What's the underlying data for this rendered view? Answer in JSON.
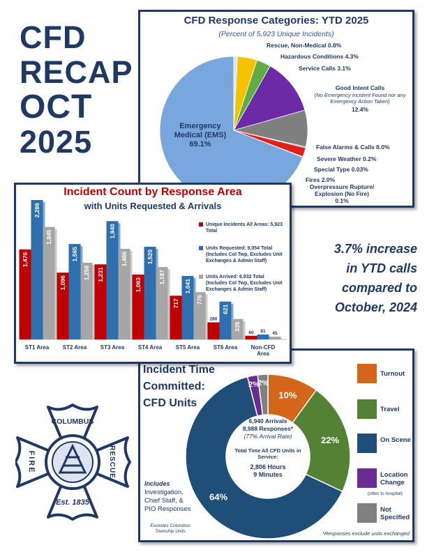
{
  "header": {
    "lines": [
      "CFD",
      "RECAP",
      "OCT",
      "2025"
    ]
  },
  "callout": {
    "lines": [
      "3.7% increase",
      "in YTD calls",
      "compared to",
      "October, 2024"
    ]
  },
  "logo": {
    "top": "COLUMBUS",
    "left": "FIRE",
    "right": "RESCUE",
    "bottom": "Est. 1835"
  },
  "chart_data": [
    {
      "type": "pie",
      "title": "CFD Response Categories: YTD 2025",
      "subtitle": "(Percent of 5,923 Unique Incidents)",
      "categories": [
        "Rescue, Non-Medical",
        "Hazardous Conditions",
        "Service Calls",
        "Good Intent Calls",
        "False Alarms & Calls",
        "Severe Weather",
        "Special Type",
        "Fires",
        "Overpressure Rupture/ Explosion (No Fire)",
        "Emergency Medical (EMS)"
      ],
      "values": [
        0.8,
        4.3,
        3.1,
        12.4,
        8.0,
        0.2,
        0.03,
        2.0,
        0.1,
        69.1
      ],
      "value_labels": [
        "0.8%",
        "4.3%",
        "3.1%",
        "12.4%",
        "8.0%",
        "0.2%",
        "0.03%",
        "2.0%",
        "0.1%",
        "69.1%"
      ],
      "colors": [
        "#dbe6f4",
        "#f5c200",
        "#5fae44",
        "#6d2aa6",
        "#7f7f7f",
        "#1f3864",
        "#f4b183",
        "#e0201b",
        "#2e75b6",
        "#79a6dc"
      ],
      "annotation": "(No Emergency Incident Found nor any Emergency Action Taken)"
    },
    {
      "type": "bar",
      "title": "Incident Count by Response Area",
      "subtitle": "with Units Requested & Arrivals",
      "categories": [
        "ST1 Area",
        "ST2 Area",
        "ST3 Area",
        "ST4 Area",
        "ST5 Area",
        "ST6 Area",
        "Non-CFD Area"
      ],
      "series": [
        {
          "name": "Unique Incidents All Areas: 5,923 Total",
          "color": "#c00000",
          "values": [
            1476,
            1096,
            1231,
            1063,
            717,
            280,
            60
          ],
          "value_labels": [
            "1,476",
            "1,096",
            "1,231",
            "1,063",
            "717",
            "280",
            "60"
          ]
        },
        {
          "name": "Units Requested: 9,054 Total (Includes Col Twp, Excludes Unit Exchanges & Admin Staff)",
          "color": "#2e6fb0",
          "values": [
            2286,
            1565,
            1940,
            1520,
            1041,
            621,
            81
          ],
          "value_labels": [
            "2,286",
            "1,565",
            "1,940",
            "1,520",
            "1,041",
            "621",
            "81"
          ]
        },
        {
          "name": "Units Arrived: 6,932 Total (Includes Col Twp, Excludes Unit Exchanges & Admin Staff)",
          "color": "#a6a6a6",
          "values": [
            1845,
            1258,
            1486,
            1187,
            776,
            335,
            45
          ],
          "value_labels": [
            "1,845",
            "1,258",
            "1,486",
            "1,187",
            "776",
            "335",
            "45"
          ]
        }
      ]
    },
    {
      "type": "donut",
      "title": "Incident Time Committed: CFD Units",
      "categories": [
        "Turnout",
        "Travel",
        "On Scene",
        "Location Change",
        "Not Specified"
      ],
      "values": [
        10,
        22,
        64,
        2,
        2
      ],
      "value_labels": [
        "10%",
        "22%",
        "64%",
        "2%",
        "2%"
      ],
      "colors": [
        "#d4661c",
        "#548235",
        "#1f4e79",
        "#6a2c91",
        "#808080"
      ],
      "legend_note": "(often to hospital)",
      "center_text": [
        "6,940 Arrivals",
        "8,988 Responses*",
        "(77% Arrival Rate)",
        "Total Time All CFD Units in Service:",
        "2,806 Hours",
        "9 Minutes"
      ],
      "notes": [
        "Includes",
        "Investigation, Chief Staff, & PIO Responses",
        "Excludes Columbus Township Units"
      ],
      "footnote": "*Responses exclude units exchanged"
    }
  ]
}
